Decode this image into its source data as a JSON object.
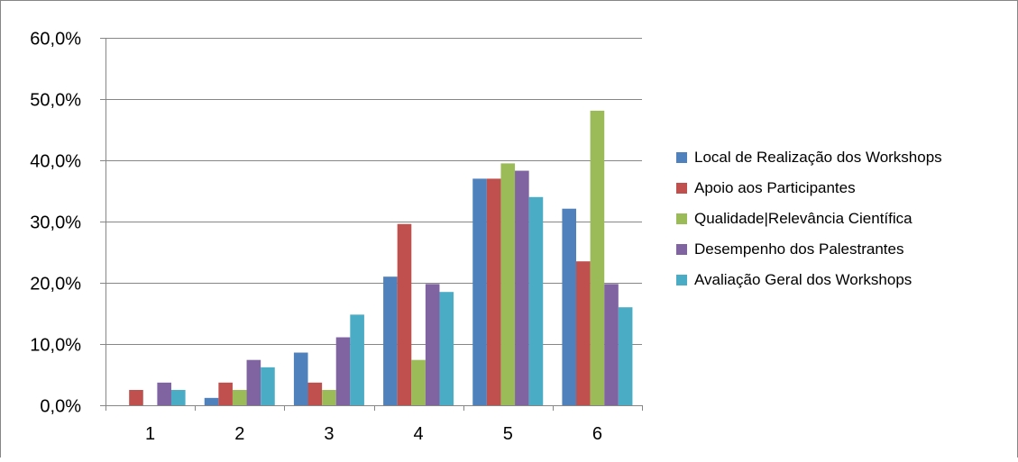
{
  "chart_data": {
    "type": "bar",
    "categories": [
      "1",
      "2",
      "3",
      "4",
      "5",
      "6"
    ],
    "ylim": [
      0,
      60
    ],
    "yticks": [
      "0,0%",
      "10,0%",
      "20,0%",
      "30,0%",
      "40,0%",
      "50,0%",
      "60,0%"
    ],
    "grid": true,
    "legend_position": "right",
    "series": [
      {
        "name": "Local de Realização dos Workshops",
        "color": "#4f81bd",
        "values": [
          0,
          1.2,
          8.6,
          21.0,
          37.0,
          32.1
        ]
      },
      {
        "name": "Apoio aos Participantes",
        "color": "#c0504d",
        "values": [
          2.5,
          3.7,
          3.7,
          29.6,
          37.0,
          23.5
        ]
      },
      {
        "name": "Qualidade|Relevância Científica",
        "color": "#9bbb59",
        "values": [
          0,
          2.5,
          2.5,
          7.4,
          39.5,
          48.1
        ]
      },
      {
        "name": "Desempenho dos Palestrantes",
        "color": "#8064a2",
        "values": [
          3.7,
          7.4,
          11.1,
          19.8,
          38.3,
          19.8
        ]
      },
      {
        "name": "Avaliação Geral dos Workshops",
        "color": "#4bacc6",
        "values": [
          2.5,
          6.2,
          14.8,
          18.5,
          34.0,
          16.0
        ]
      }
    ]
  }
}
